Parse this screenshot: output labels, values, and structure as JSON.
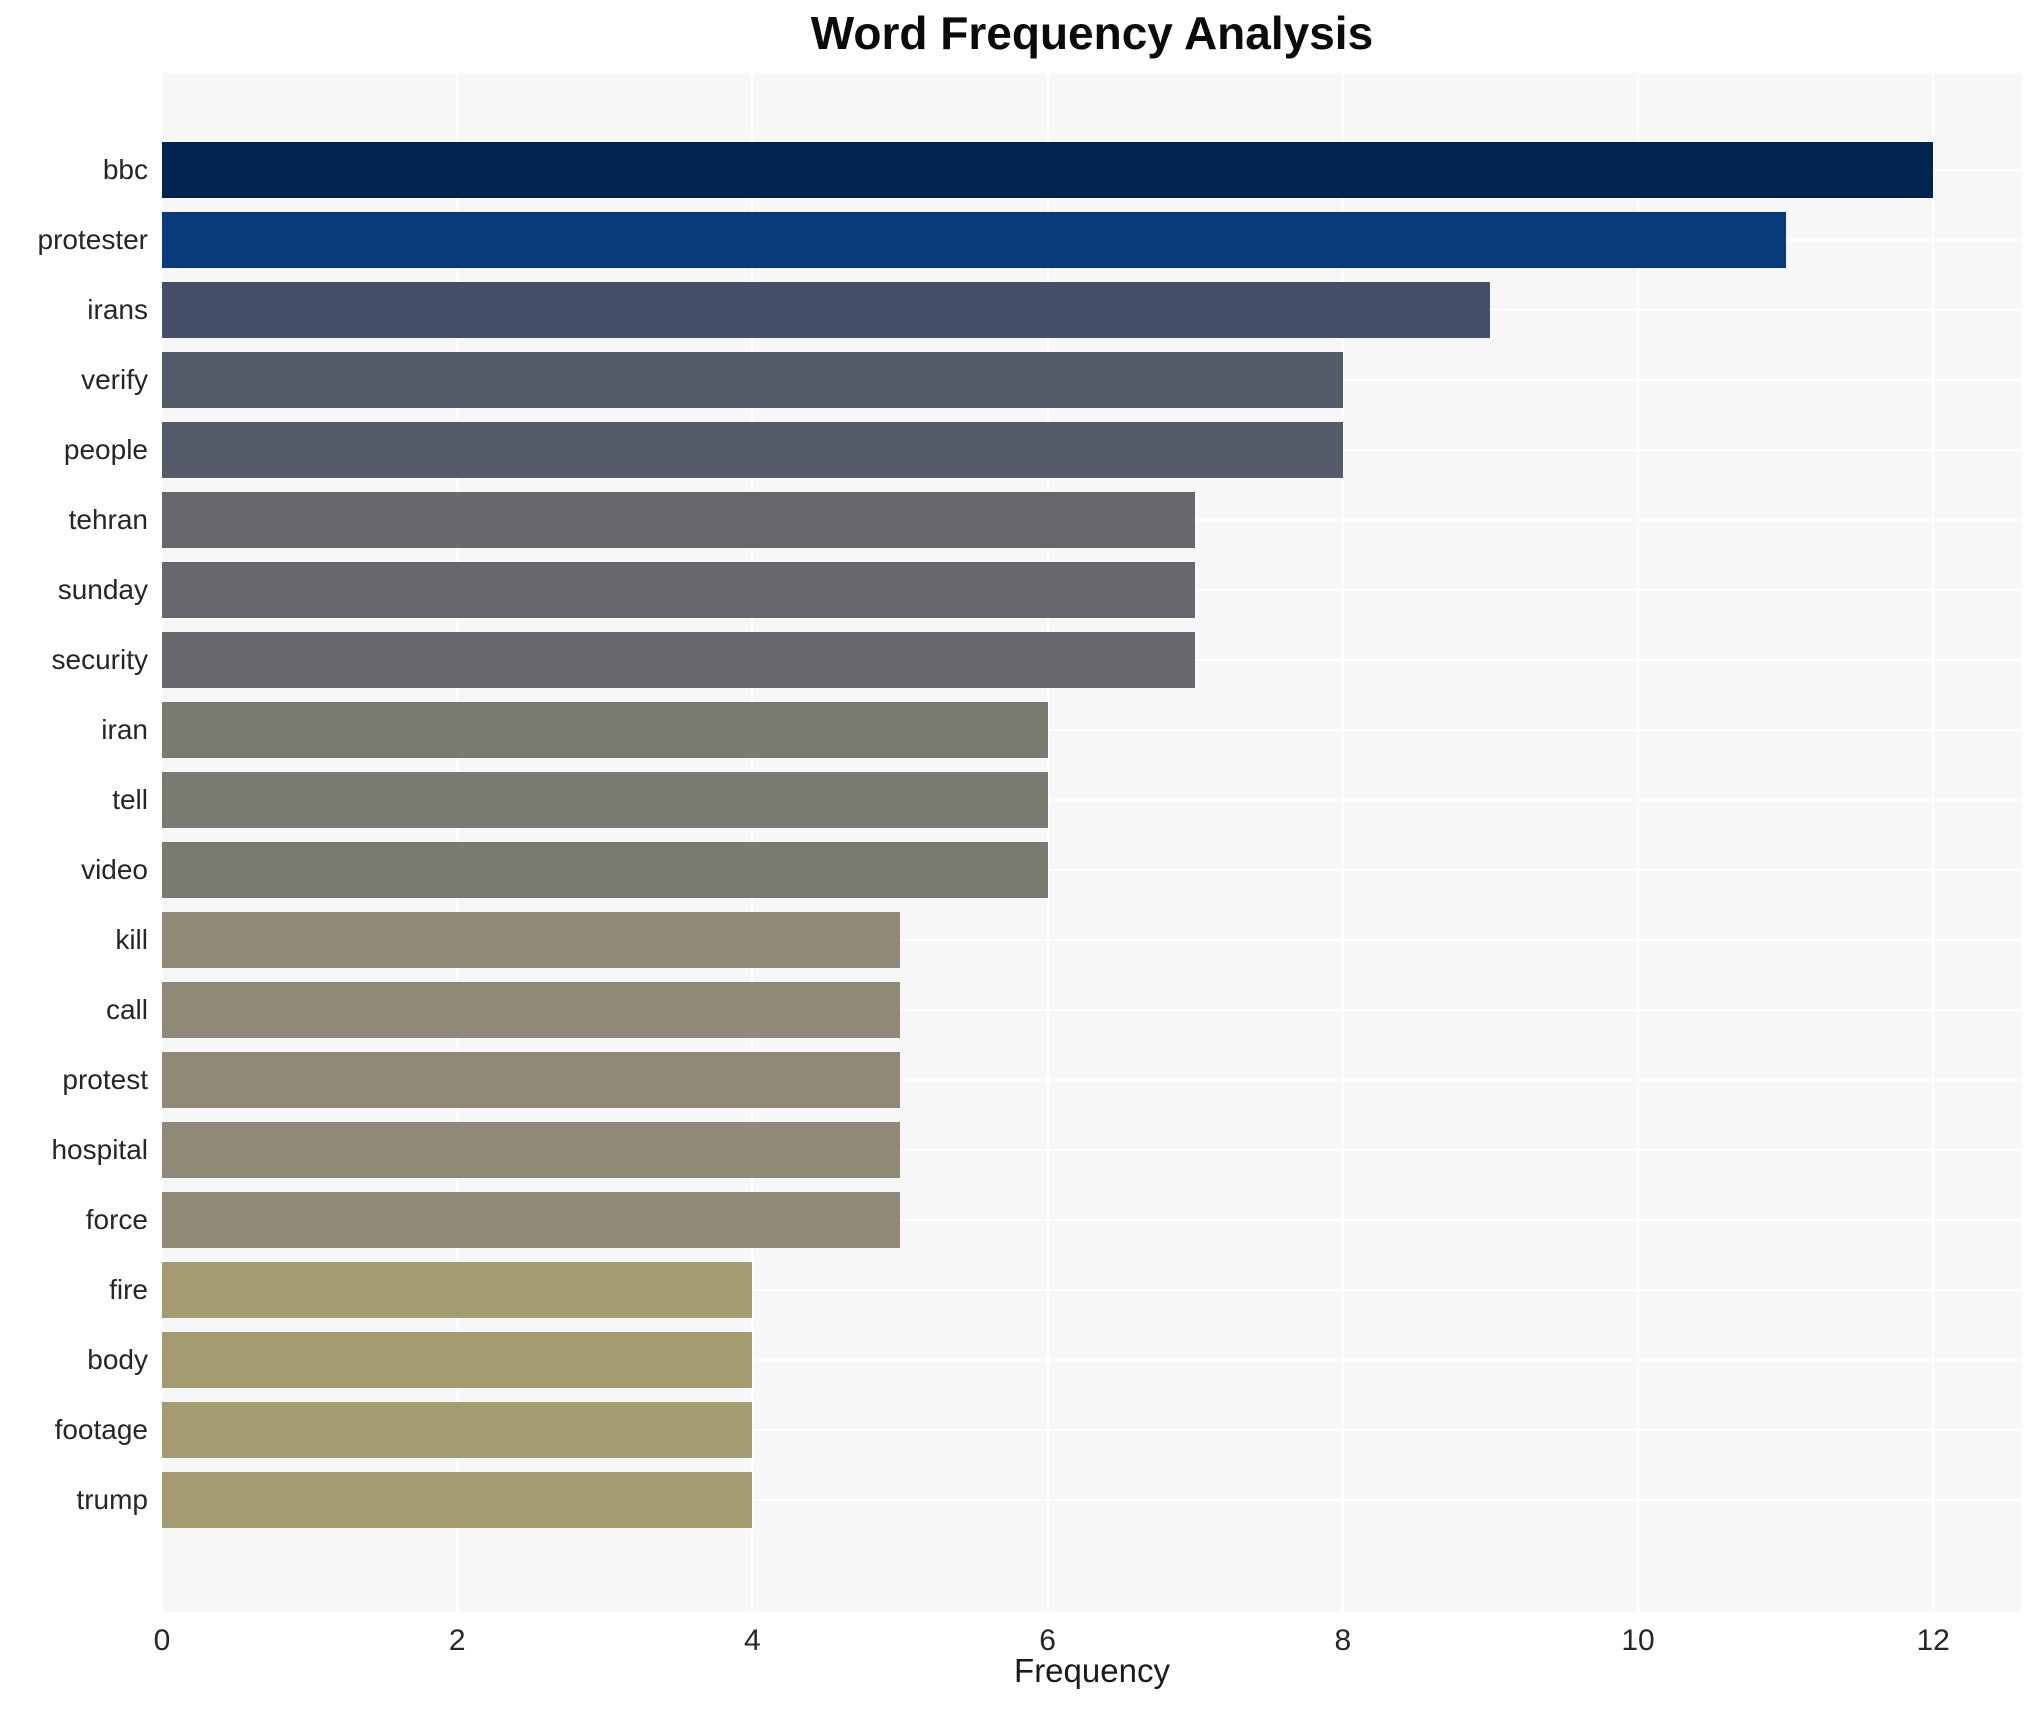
{
  "title": "Word Frequency Analysis",
  "chart_data": {
    "type": "bar",
    "orientation": "horizontal",
    "title": "Word Frequency Analysis",
    "xlabel": "Frequency",
    "ylabel": "",
    "xlim": [
      0,
      12.6
    ],
    "x_ticks": [
      0,
      2,
      4,
      6,
      8,
      10,
      12
    ],
    "grid": true,
    "legend": "none",
    "plot_bg_color": "#f7f7f7",
    "grid_color": "#ffffff",
    "label_color": "#262626",
    "categories": [
      "bbc",
      "protester",
      "irans",
      "verify",
      "people",
      "tehran",
      "sunday",
      "security",
      "iran",
      "tell",
      "video",
      "kill",
      "call",
      "protest",
      "hospital",
      "force",
      "fire",
      "body",
      "footage",
      "trump"
    ],
    "values": [
      12,
      11,
      9,
      8,
      8,
      7,
      7,
      7,
      6,
      6,
      6,
      5,
      5,
      5,
      5,
      5,
      4,
      4,
      4,
      4
    ],
    "bar_colors": [
      "#032450",
      "#083a7c",
      "#454f6c",
      "#555a68",
      "#555a68",
      "#67676d",
      "#67676d",
      "#67676d",
      "#7b7a72",
      "#7b7a72",
      "#7b7a72",
      "#908977",
      "#908977",
      "#908977",
      "#908977",
      "#908977",
      "#a49b71",
      "#a49b71",
      "#a49b71",
      "#a49b71"
    ]
  }
}
